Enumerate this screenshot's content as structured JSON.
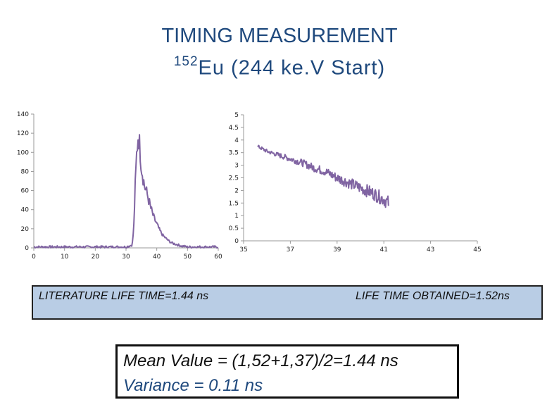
{
  "slide": {
    "title": "TIMING MEASUREMENT",
    "subtitle_sup": "152",
    "subtitle_rest": "Eu (244 ke.V Start)"
  },
  "colors": {
    "series": "#8064a2",
    "title": "#1f497d",
    "box_fill": "#b9cde5"
  },
  "chart_data": [
    {
      "type": "line",
      "xlim": [
        0,
        60
      ],
      "ylim": [
        0,
        140
      ],
      "x_ticks": [
        0,
        10,
        20,
        30,
        40,
        50,
        60
      ],
      "y_ticks": [
        0,
        20,
        40,
        60,
        80,
        100,
        120,
        140
      ],
      "grid": false,
      "series": [
        {
          "x": [
            0,
            5,
            10,
            15,
            20,
            25,
            30,
            32,
            32.5,
            33,
            33.5,
            34,
            34.5,
            35,
            36,
            37,
            38,
            39,
            40,
            41,
            42,
            43,
            44,
            45,
            46,
            48,
            50,
            55,
            60
          ],
          "values": [
            1,
            1,
            1,
            1,
            1,
            1,
            1,
            3,
            20,
            65,
            100,
            120,
            105,
            85,
            65,
            55,
            42,
            32,
            25,
            18,
            13,
            10,
            7,
            5,
            4,
            2,
            1,
            1,
            1
          ]
        }
      ]
    },
    {
      "type": "line",
      "xlim": [
        35,
        45
      ],
      "ylim": [
        0,
        5
      ],
      "x_ticks": [
        35,
        37,
        39,
        41,
        43,
        45
      ],
      "y_ticks": [
        0,
        0.5,
        1,
        1.5,
        2,
        2.5,
        3,
        3.5,
        4,
        4.5,
        5
      ],
      "y_tick_labels": [
        "0",
        "0.5",
        "1",
        "1.5",
        "2",
        "2.5",
        "3",
        "3.5",
        "4",
        "4.5",
        "5"
      ],
      "grid": false,
      "series": [
        {
          "x": [
            35.6,
            36,
            36.5,
            37,
            37.5,
            38,
            38.5,
            39,
            39.5,
            40,
            40.5,
            41,
            41.2
          ],
          "values": [
            3.75,
            3.55,
            3.4,
            3.25,
            3.1,
            2.9,
            2.75,
            2.5,
            2.3,
            2.1,
            1.9,
            1.65,
            1.5
          ]
        }
      ]
    }
  ],
  "boxes": {
    "literature": "LITERATURE LIFE TIME=1.44 ns",
    "obtained": "LIFE TIME OBTAINED=1.52ns",
    "mean": "Mean Value = (1,52+1,37)/2=1.44 ns",
    "variance": "Variance = 0.11 ns"
  }
}
